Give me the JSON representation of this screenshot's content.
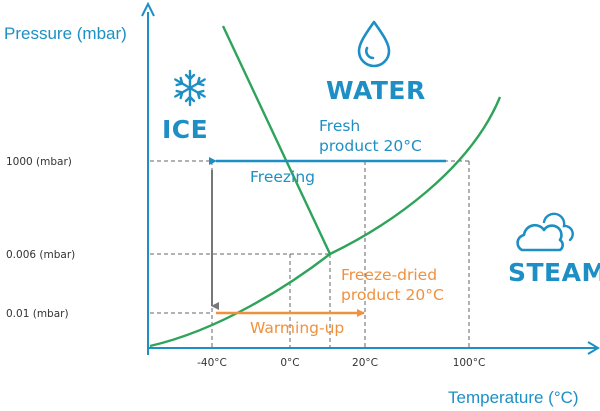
{
  "axes": {
    "y_title": "Pressure (mbar)",
    "x_title": "Temperature (°C)",
    "y_ticks": [
      "1000 (mbar)",
      "0.006 (mbar)",
      "0.01 (mbar)"
    ],
    "x_ticks": [
      "-40°C",
      "0°C",
      "20°C",
      "100°C"
    ]
  },
  "regions": {
    "ice": "ICE",
    "water": "WATER",
    "steam": "STEAM"
  },
  "annotations": {
    "fresh_line1": "Fresh",
    "fresh_line2": "product 20°C",
    "freezing": "Freezing",
    "freeze_dried_line1": "Freeze-dried",
    "freeze_dried_line2": "product 20°C",
    "warming_up": "Warming-up"
  },
  "icons": {
    "ice": "snowflake-icon",
    "water": "water-drop-icon",
    "steam": "cloud-icon"
  },
  "colors": {
    "axis": "#1e8fc4",
    "curve": "#2ea35a",
    "freezing_arrow": "#1e8fc4",
    "warming_arrow": "#f0913e",
    "down_arrow": "#777777"
  }
}
